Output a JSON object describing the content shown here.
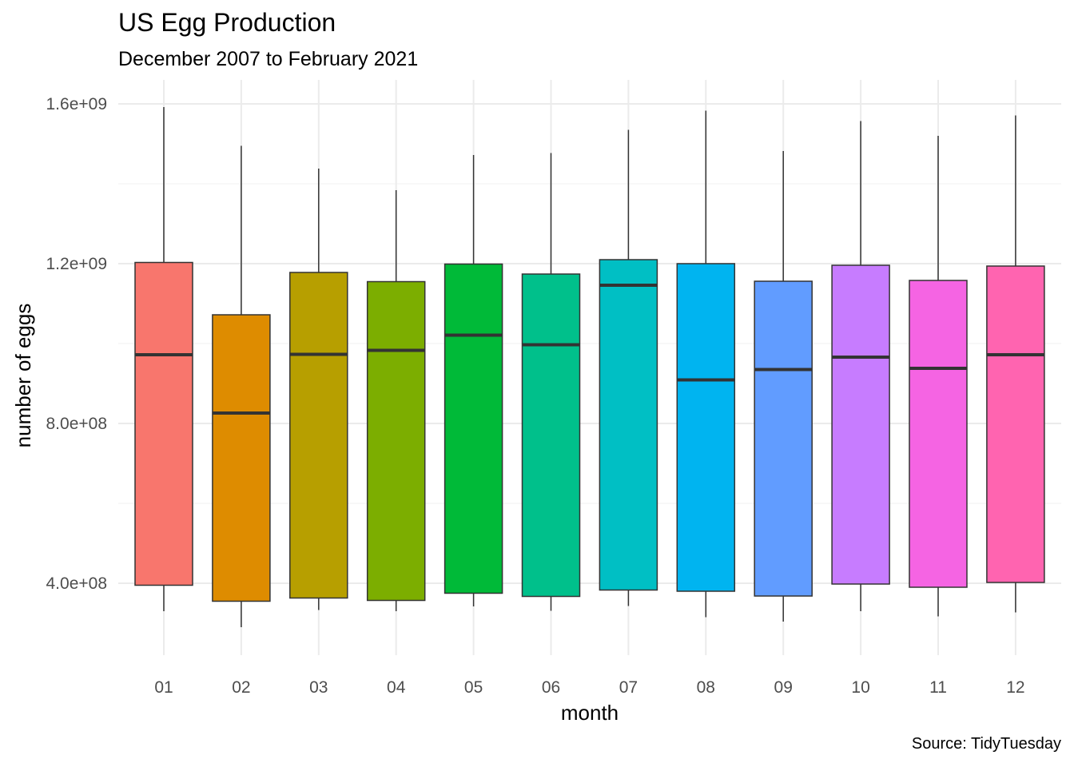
{
  "chart_data": {
    "type": "boxplot",
    "title": "US Egg Production",
    "subtitle": "December 2007 to February 2021",
    "xlabel": "month",
    "ylabel": "number of eggs",
    "caption": "Source: TidyTuesday",
    "ylim": [
      220000000,
      1660000000
    ],
    "y_ticks": [
      400000000,
      800000000,
      1200000000,
      1600000000
    ],
    "y_tick_labels": [
      "4.0e+08",
      "8.0e+08",
      "1.2e+09",
      "1.6e+09"
    ],
    "grid": true,
    "legend": "none",
    "categories": [
      "01",
      "02",
      "03",
      "04",
      "05",
      "06",
      "07",
      "08",
      "09",
      "10",
      "11",
      "12"
    ],
    "colors": [
      "#F8766D",
      "#DE8C00",
      "#B79F00",
      "#7CAE00",
      "#00BA38",
      "#00C08B",
      "#00BFC4",
      "#00B4F0",
      "#619CFF",
      "#C77CFF",
      "#F564E3",
      "#FF64B0"
    ],
    "boxes": [
      {
        "month": "01",
        "min": 330000000,
        "q1": 395000000,
        "median": 972000000,
        "q3": 1203000000,
        "max": 1592000000
      },
      {
        "month": "02",
        "min": 290000000,
        "q1": 355000000,
        "median": 826000000,
        "q3": 1072000000,
        "max": 1495000000
      },
      {
        "month": "03",
        "min": 333000000,
        "q1": 363000000,
        "median": 973000000,
        "q3": 1178000000,
        "max": 1438000000
      },
      {
        "month": "04",
        "min": 330000000,
        "q1": 357000000,
        "median": 983000000,
        "q3": 1155000000,
        "max": 1384000000
      },
      {
        "month": "05",
        "min": 342000000,
        "q1": 375000000,
        "median": 1021000000,
        "q3": 1199000000,
        "max": 1472000000
      },
      {
        "month": "06",
        "min": 331000000,
        "q1": 367000000,
        "median": 997000000,
        "q3": 1174000000,
        "max": 1477000000
      },
      {
        "month": "07",
        "min": 343000000,
        "q1": 383000000,
        "median": 1146000000,
        "q3": 1210000000,
        "max": 1535000000
      },
      {
        "month": "08",
        "min": 315000000,
        "q1": 380000000,
        "median": 909000000,
        "q3": 1200000000,
        "max": 1583000000
      },
      {
        "month": "09",
        "min": 304000000,
        "q1": 368000000,
        "median": 935000000,
        "q3": 1156000000,
        "max": 1482000000
      },
      {
        "month": "10",
        "min": 330000000,
        "q1": 398000000,
        "median": 966000000,
        "q3": 1196000000,
        "max": 1557000000
      },
      {
        "month": "11",
        "min": 317000000,
        "q1": 390000000,
        "median": 938000000,
        "q3": 1158000000,
        "max": 1520000000
      },
      {
        "month": "12",
        "min": 327000000,
        "q1": 402000000,
        "median": 972000000,
        "q3": 1194000000,
        "max": 1571000000
      }
    ]
  }
}
